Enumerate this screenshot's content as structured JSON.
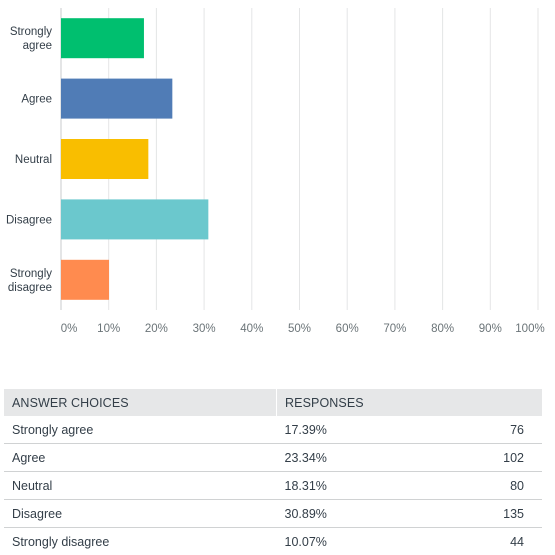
{
  "chart_data": {
    "type": "bar",
    "orientation": "horizontal",
    "categories": [
      "Strongly agree",
      "Agree",
      "Neutral",
      "Disagree",
      "Strongly disagree"
    ],
    "category_tick_labels": [
      [
        "Strongly",
        "agree"
      ],
      [
        "Agree"
      ],
      [
        "Neutral"
      ],
      [
        "Disagree"
      ],
      [
        "Strongly",
        "disagree"
      ]
    ],
    "values": [
      17.39,
      23.34,
      18.31,
      30.89,
      10.07
    ],
    "colors": [
      "#00bf6f",
      "#507cb6",
      "#f9be00",
      "#6bc8cd",
      "#ff8b4f"
    ],
    "xlim": [
      0,
      100
    ],
    "x_ticks": [
      "0%",
      "10%",
      "20%",
      "30%",
      "40%",
      "50%",
      "60%",
      "70%",
      "80%",
      "90%",
      "100%"
    ],
    "grid": true
  },
  "table": {
    "headers": [
      "ANSWER CHOICES",
      "RESPONSES"
    ],
    "rows": [
      {
        "choice": "Strongly agree",
        "percent": "17.39%",
        "count": "76"
      },
      {
        "choice": "Agree",
        "percent": "23.34%",
        "count": "102"
      },
      {
        "choice": "Neutral",
        "percent": "18.31%",
        "count": "80"
      },
      {
        "choice": "Disagree",
        "percent": "30.89%",
        "count": "135"
      },
      {
        "choice": "Strongly disagree",
        "percent": "10.07%",
        "count": "44"
      }
    ]
  }
}
